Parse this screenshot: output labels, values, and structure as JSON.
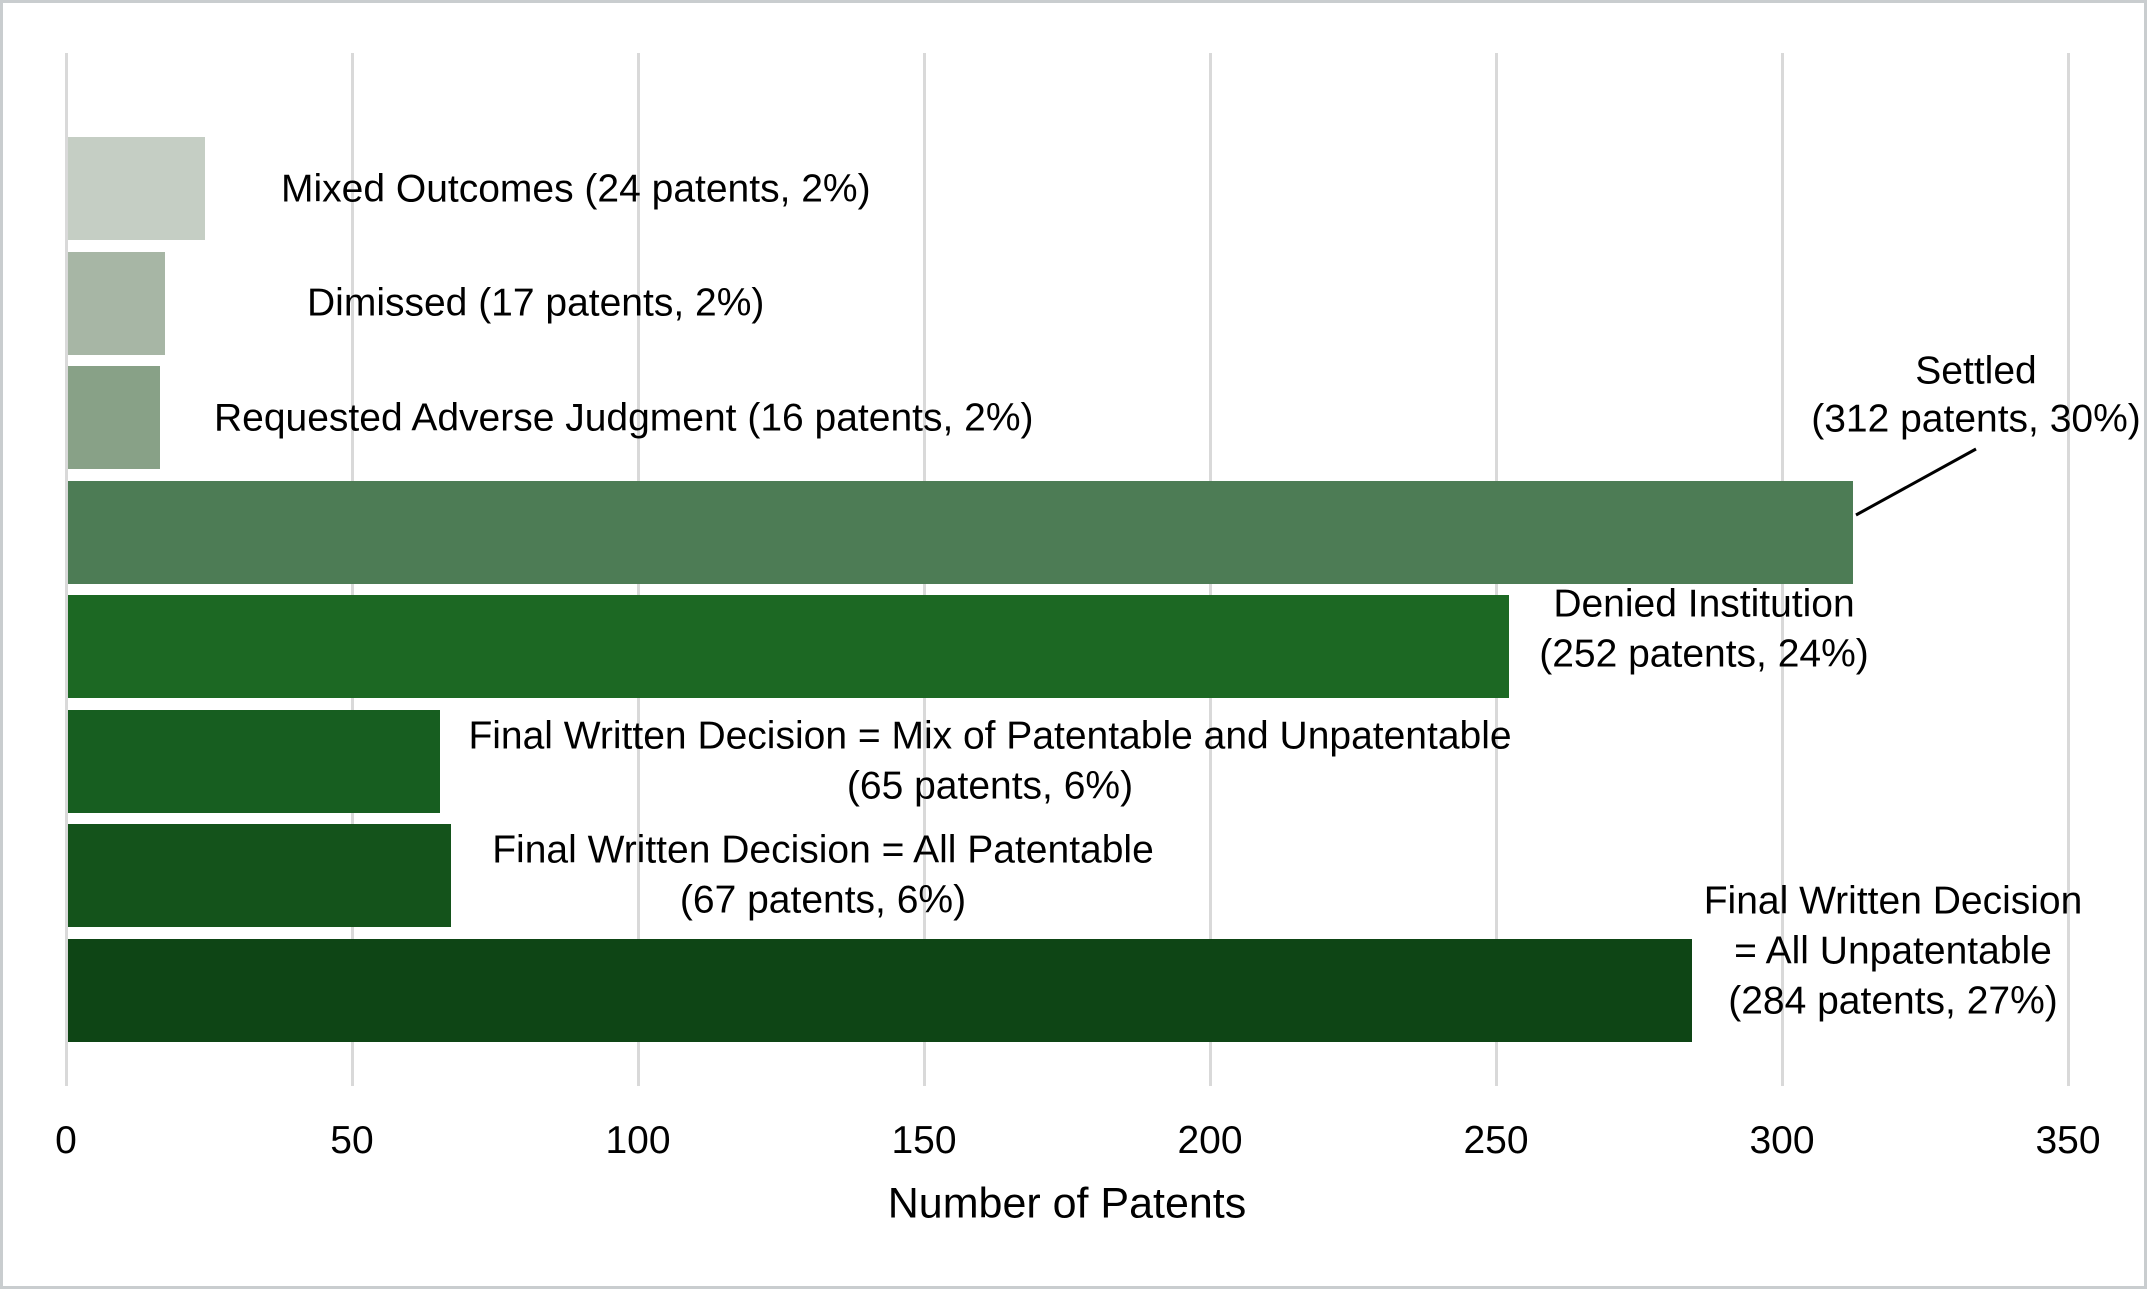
{
  "chart_data": {
    "type": "bar",
    "orientation": "horizontal",
    "title": "",
    "xlabel": "Number of Patents",
    "ylabel": "",
    "xlim": [
      0,
      350
    ],
    "xticks": [
      0,
      50,
      100,
      150,
      200,
      250,
      300,
      350
    ],
    "xtick_labels": [
      "0",
      "50",
      "100",
      "150",
      "200",
      "250",
      "300",
      "350"
    ],
    "grid": "vertical",
    "gridline_color": "#d9d9d9",
    "background_color": "#ffffff",
    "text_color": "#000000",
    "legend": "none",
    "bars": [
      {
        "category": "Mixed Outcomes",
        "patents": 24,
        "share": "2%",
        "value": 24,
        "color": "#c5cec4",
        "label_lines": [
          "Mixed Outcomes (24 patents, 2%)"
        ]
      },
      {
        "category": "Dimissed",
        "patents": 17,
        "share": "2%",
        "value": 17,
        "color": "#a7b6a5",
        "label_lines": [
          "Dimissed (17 patents, 2%)"
        ]
      },
      {
        "category": "Requested Adverse Judgment",
        "patents": 16,
        "share": "2%",
        "value": 16,
        "color": "#88a187",
        "label_lines": [
          "Requested Adverse Judgment (16 patents, 2%)"
        ]
      },
      {
        "category": "Settled",
        "patents": 312,
        "share": "30%",
        "value": 312,
        "color": "#4d7c55",
        "label_lines": [
          "Settled",
          "(312 patents, 30%)"
        ],
        "callout": true
      },
      {
        "category": "Denied Institution",
        "patents": 252,
        "share": "24%",
        "value": 252,
        "color": "#1c6823",
        "label_lines": [
          "Denied Institution",
          "(252 patents, 24%)"
        ]
      },
      {
        "category": "Final Written Decision = Mix of Patentable and Unpatentable",
        "patents": 65,
        "share": "6%",
        "value": 65,
        "color": "#175e20",
        "label_lines": [
          "Final Written Decision = Mix of Patentable and Unpatentable",
          "(65 patents, 6%)"
        ]
      },
      {
        "category": "Final Written Decision = All Patentable",
        "patents": 67,
        "share": "6%",
        "value": 67,
        "color": "#14531b",
        "label_lines": [
          "Final Written Decision = All Patentable",
          "(67 patents, 6%)"
        ]
      },
      {
        "category": "Final Written Decision = All Unpatentable",
        "patents": 284,
        "share": "27%",
        "value": 284,
        "color": "#0e4515",
        "label_lines": [
          "Final Written Decision",
          "= All Unpatentable",
          "(284 patents, 27%)"
        ]
      }
    ]
  }
}
